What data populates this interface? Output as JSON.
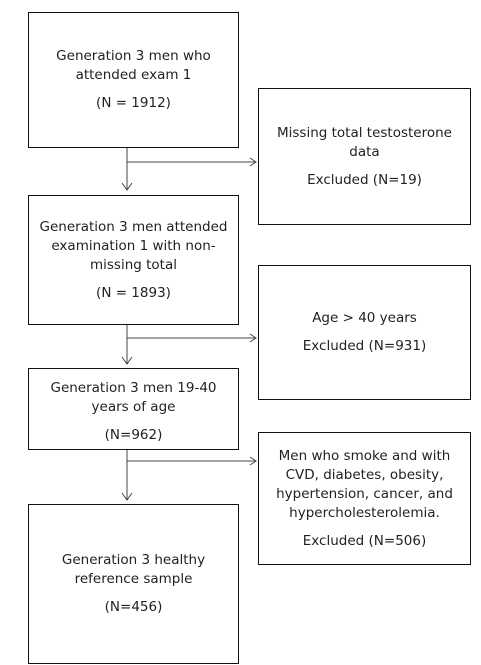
{
  "nodes": [
    {
      "text": "Generation 3 men who attended exam 1",
      "count": "(N = 1912)"
    },
    {
      "text": "Missing total testosterone data",
      "count": "Excluded (N=19)"
    },
    {
      "text": "Generation 3 men attended examination 1 with non-missing total",
      "count": "(N = 1893)"
    },
    {
      "text": "Age > 40 years",
      "count": "Excluded (N=931)"
    },
    {
      "text": "Generation 3 men 19-40 years of age",
      "count": "(N=962)"
    },
    {
      "text": "Men who smoke and with CVD, diabetes, obesity, hypertension, cancer, and hypercholesterolemia.",
      "count": "Excluded (N=506)"
    },
    {
      "text": "Generation 3 healthy reference sample",
      "count": "(N=456)"
    }
  ]
}
